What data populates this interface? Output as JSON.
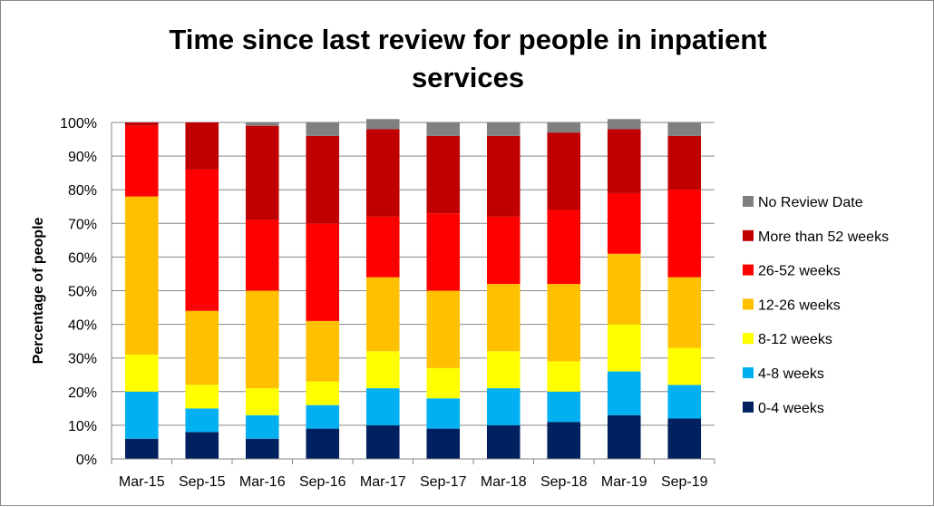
{
  "chart_data": {
    "type": "bar",
    "stacked": true,
    "title_lines": [
      "Time since last review for people in inpatient",
      "services"
    ],
    "ylabel": "Percentage of people",
    "xlabel": "",
    "categories": [
      "Mar-15",
      "Sep-15",
      "Mar-16",
      "Sep-16",
      "Mar-17",
      "Sep-17",
      "Mar-18",
      "Sep-18",
      "Mar-19",
      "Sep-19"
    ],
    "ylim": [
      0,
      100
    ],
    "yticks": [
      0,
      10,
      20,
      30,
      40,
      50,
      60,
      70,
      80,
      90,
      100
    ],
    "ytick_labels": [
      "0%",
      "10%",
      "20%",
      "30%",
      "40%",
      "50%",
      "60%",
      "70%",
      "80%",
      "90%",
      "100%"
    ],
    "grid": true,
    "legend_position": "right",
    "series": [
      {
        "name": "0-4 weeks",
        "color": "#002060",
        "values": [
          6,
          8,
          6,
          9,
          10,
          9,
          10,
          11,
          13,
          12
        ]
      },
      {
        "name": "4-8 weeks",
        "color": "#00B0F0",
        "values": [
          14,
          7,
          7,
          7,
          11,
          9,
          11,
          9,
          13,
          10
        ]
      },
      {
        "name": "8-12 weeks",
        "color": "#FFFF00",
        "values": [
          11,
          7,
          8,
          7,
          11,
          9,
          11,
          9,
          14,
          11
        ]
      },
      {
        "name": "12-26 weeks",
        "color": "#FFC000",
        "values": [
          47,
          22,
          29,
          18,
          22,
          23,
          20,
          23,
          21,
          21
        ]
      },
      {
        "name": "26-52 weeks",
        "color": "#FF0000",
        "values": [
          21,
          42,
          21,
          29,
          18,
          23,
          20,
          22,
          18,
          26
        ]
      },
      {
        "name": "More than 52 weeks",
        "color": "#C00000",
        "values": [
          1,
          14,
          28,
          26,
          26,
          23,
          24,
          23,
          19,
          16
        ]
      },
      {
        "name": "No Review Date",
        "color": "#808080",
        "values": [
          0,
          0,
          1,
          4,
          3,
          4,
          4,
          3,
          3,
          4
        ]
      }
    ]
  }
}
